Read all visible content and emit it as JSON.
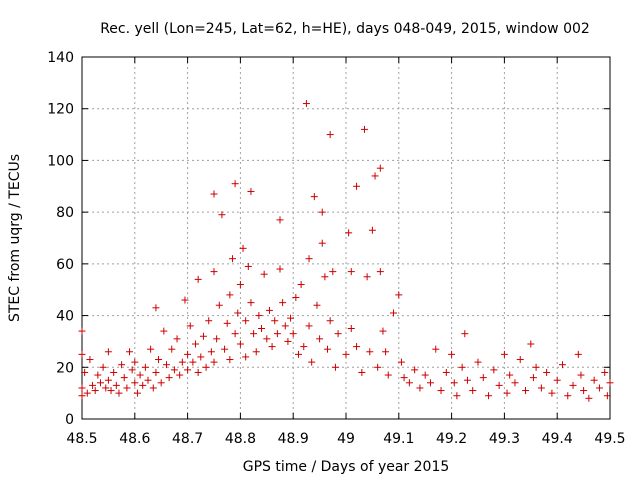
{
  "chart_data": {
    "type": "scatter",
    "title": "Rec. yell (Lon=245, Lat=62, h=HE), days 048-049, 2015, window 002",
    "xlabel": "GPS time / Days of year 2015",
    "ylabel": "STEC from uqrg / TECUs",
    "xlim": [
      48.5,
      49.5
    ],
    "ylim": [
      0,
      140
    ],
    "xticks": [
      "48.5",
      "48.6",
      "48.7",
      "48.8",
      "48.9",
      "49",
      "49.1",
      "49.2",
      "49.3",
      "49.4",
      "49.5"
    ],
    "yticks": [
      "0",
      "20",
      "40",
      "60",
      "80",
      "100",
      "120",
      "140"
    ],
    "grid": true,
    "marker_color": "#cc0000",
    "marker": "plus",
    "series": [
      {
        "points": [
          [
            48.5,
            34
          ],
          [
            48.5,
            25
          ],
          [
            48.5,
            12
          ],
          [
            48.5,
            9
          ],
          [
            48.505,
            18
          ],
          [
            48.51,
            10
          ],
          [
            48.515,
            23
          ],
          [
            48.52,
            13
          ],
          [
            48.525,
            11
          ],
          [
            48.53,
            17
          ],
          [
            48.535,
            14
          ],
          [
            48.54,
            20
          ],
          [
            48.545,
            12
          ],
          [
            48.55,
            26
          ],
          [
            48.55,
            15
          ],
          [
            48.555,
            11
          ],
          [
            48.56,
            18
          ],
          [
            48.565,
            13
          ],
          [
            48.57,
            10
          ],
          [
            48.575,
            21
          ],
          [
            48.58,
            16
          ],
          [
            48.585,
            12
          ],
          [
            48.59,
            26
          ],
          [
            48.595,
            19
          ],
          [
            48.6,
            14
          ],
          [
            48.6,
            22
          ],
          [
            48.605,
            10
          ],
          [
            48.61,
            17
          ],
          [
            48.615,
            13
          ],
          [
            48.62,
            20
          ],
          [
            48.625,
            15
          ],
          [
            48.63,
            27
          ],
          [
            48.635,
            12
          ],
          [
            48.64,
            43
          ],
          [
            48.64,
            18
          ],
          [
            48.645,
            23
          ],
          [
            48.65,
            14
          ],
          [
            48.655,
            34
          ],
          [
            48.66,
            21
          ],
          [
            48.665,
            16
          ],
          [
            48.67,
            27
          ],
          [
            48.675,
            19
          ],
          [
            48.68,
            31
          ],
          [
            48.685,
            17
          ],
          [
            48.69,
            22
          ],
          [
            48.695,
            46
          ],
          [
            48.7,
            25
          ],
          [
            48.7,
            19
          ],
          [
            48.705,
            36
          ],
          [
            48.71,
            22
          ],
          [
            48.715,
            29
          ],
          [
            48.72,
            18
          ],
          [
            48.72,
            54
          ],
          [
            48.725,
            24
          ],
          [
            48.73,
            32
          ],
          [
            48.735,
            20
          ],
          [
            48.74,
            38
          ],
          [
            48.745,
            26
          ],
          [
            48.75,
            87
          ],
          [
            48.75,
            57
          ],
          [
            48.75,
            22
          ],
          [
            48.755,
            31
          ],
          [
            48.76,
            44
          ],
          [
            48.765,
            79
          ],
          [
            48.77,
            27
          ],
          [
            48.775,
            37
          ],
          [
            48.78,
            48
          ],
          [
            48.78,
            23
          ],
          [
            48.785,
            62
          ],
          [
            48.79,
            91
          ],
          [
            48.79,
            33
          ],
          [
            48.795,
            41
          ],
          [
            48.8,
            52
          ],
          [
            48.8,
            29
          ],
          [
            48.805,
            66
          ],
          [
            48.81,
            38
          ],
          [
            48.81,
            24
          ],
          [
            48.815,
            59
          ],
          [
            48.82,
            88
          ],
          [
            48.82,
            45
          ],
          [
            48.825,
            33
          ],
          [
            48.83,
            26
          ],
          [
            48.835,
            40
          ],
          [
            48.84,
            35
          ],
          [
            48.845,
            56
          ],
          [
            48.85,
            31
          ],
          [
            48.855,
            42
          ],
          [
            48.86,
            28
          ],
          [
            48.865,
            38
          ],
          [
            48.87,
            33
          ],
          [
            48.875,
            77
          ],
          [
            48.875,
            58
          ],
          [
            48.88,
            45
          ],
          [
            48.885,
            36
          ],
          [
            48.89,
            30
          ],
          [
            48.895,
            39
          ],
          [
            48.9,
            33
          ],
          [
            48.905,
            47
          ],
          [
            48.91,
            25
          ],
          [
            48.915,
            52
          ],
          [
            48.92,
            28
          ],
          [
            48.925,
            122
          ],
          [
            48.93,
            62
          ],
          [
            48.93,
            36
          ],
          [
            48.935,
            22
          ],
          [
            48.94,
            86
          ],
          [
            48.945,
            44
          ],
          [
            48.95,
            31
          ],
          [
            48.955,
            80
          ],
          [
            48.955,
            68
          ],
          [
            48.96,
            55
          ],
          [
            48.965,
            27
          ],
          [
            48.97,
            110
          ],
          [
            48.97,
            38
          ],
          [
            48.975,
            57
          ],
          [
            48.98,
            20
          ],
          [
            48.985,
            33
          ],
          [
            49.0,
            25
          ],
          [
            49.005,
            72
          ],
          [
            49.01,
            57
          ],
          [
            49.01,
            35
          ],
          [
            49.02,
            90
          ],
          [
            49.02,
            28
          ],
          [
            49.03,
            18
          ],
          [
            49.035,
            112
          ],
          [
            49.04,
            55
          ],
          [
            49.045,
            26
          ],
          [
            49.05,
            73
          ],
          [
            49.055,
            94
          ],
          [
            49.06,
            20
          ],
          [
            49.065,
            97
          ],
          [
            49.065,
            57
          ],
          [
            49.07,
            34
          ],
          [
            49.075,
            26
          ],
          [
            49.08,
            17
          ],
          [
            49.09,
            41
          ],
          [
            49.1,
            48
          ],
          [
            49.105,
            22
          ],
          [
            49.11,
            16
          ],
          [
            49.12,
            14
          ],
          [
            49.13,
            19
          ],
          [
            49.14,
            12
          ],
          [
            49.15,
            17
          ],
          [
            49.16,
            14
          ],
          [
            49.17,
            27
          ],
          [
            49.18,
            11
          ],
          [
            49.19,
            18
          ],
          [
            49.2,
            25
          ],
          [
            49.205,
            14
          ],
          [
            49.21,
            9
          ],
          [
            49.22,
            20
          ],
          [
            49.225,
            33
          ],
          [
            49.23,
            15
          ],
          [
            49.24,
            11
          ],
          [
            49.25,
            22
          ],
          [
            49.26,
            16
          ],
          [
            49.27,
            9
          ],
          [
            49.28,
            19
          ],
          [
            49.29,
            13
          ],
          [
            49.3,
            25
          ],
          [
            49.305,
            10
          ],
          [
            49.31,
            17
          ],
          [
            49.32,
            14
          ],
          [
            49.33,
            23
          ],
          [
            49.34,
            11
          ],
          [
            49.35,
            29
          ],
          [
            49.355,
            16
          ],
          [
            49.36,
            20
          ],
          [
            49.37,
            12
          ],
          [
            49.38,
            18
          ],
          [
            49.39,
            10
          ],
          [
            49.4,
            15
          ],
          [
            49.41,
            21
          ],
          [
            49.42,
            9
          ],
          [
            49.43,
            13
          ],
          [
            49.44,
            25
          ],
          [
            49.445,
            17
          ],
          [
            49.45,
            11
          ],
          [
            49.46,
            8
          ],
          [
            49.47,
            15
          ],
          [
            49.48,
            12
          ],
          [
            49.49,
            18
          ],
          [
            49.495,
            9
          ],
          [
            49.5,
            14
          ]
        ]
      }
    ]
  }
}
